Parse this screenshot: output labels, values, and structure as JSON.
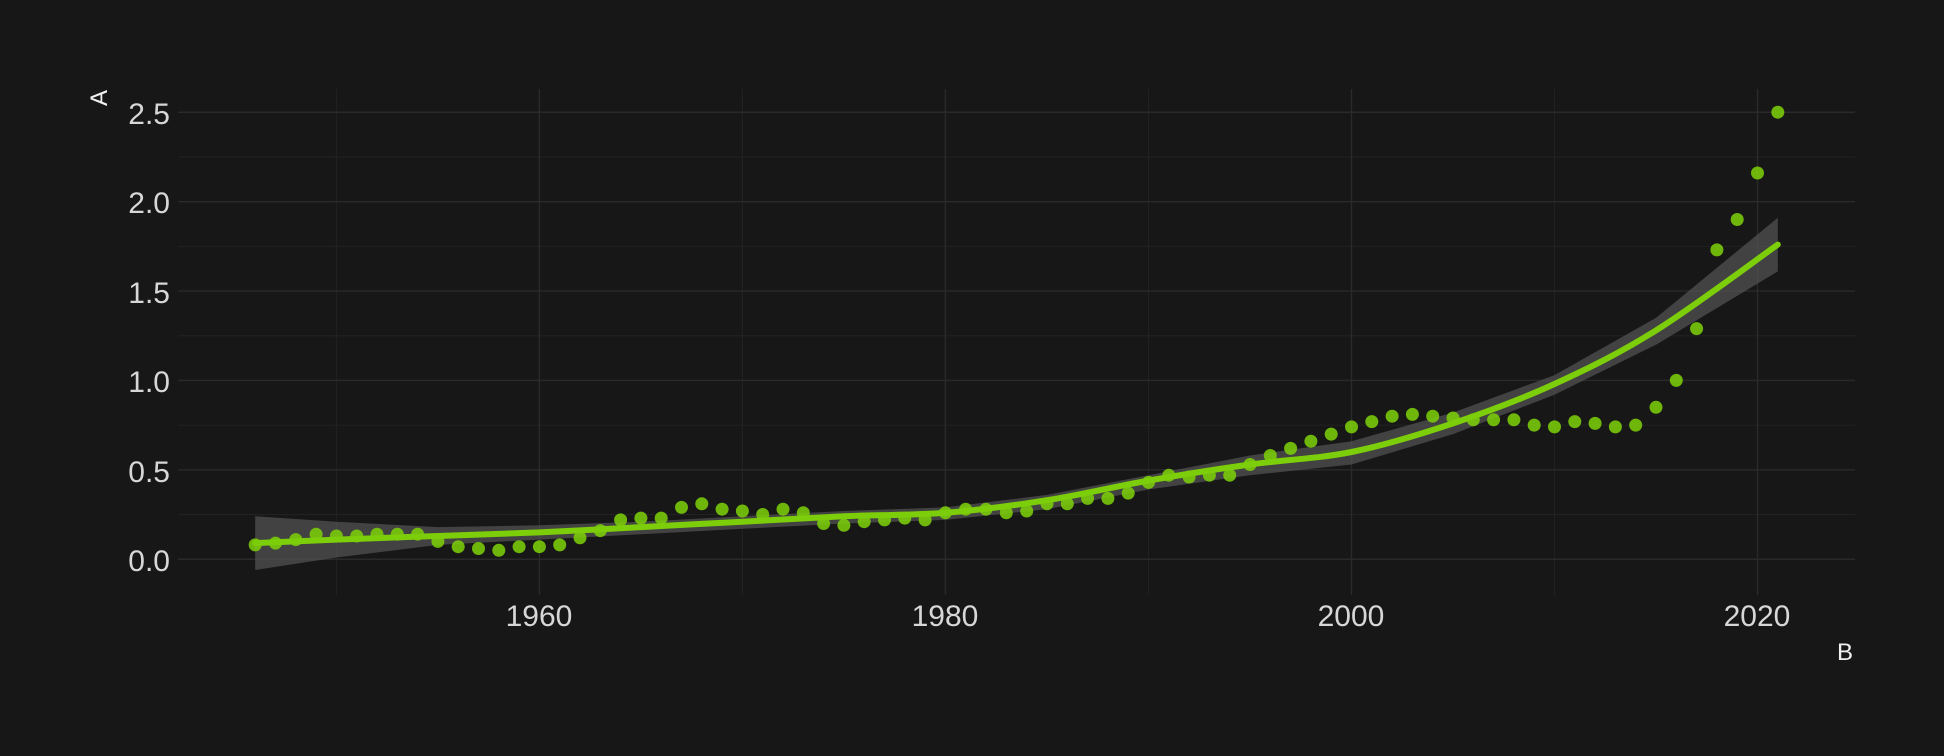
{
  "chart_data": {
    "type": "scatter",
    "title": "",
    "xlabel": "B",
    "ylabel": "A",
    "xlim": [
      1942.2,
      2024.8
    ],
    "ylim": [
      -0.2,
      2.63
    ],
    "x_ticks": [
      "1960",
      "1980",
      "2000",
      "2020"
    ],
    "y_ticks": [
      "0.0",
      "0.5",
      "1.0",
      "1.5",
      "2.0",
      "2.5"
    ],
    "grid": true,
    "legend": "none",
    "colors": {
      "background": "#171717",
      "points": "#7ccd0a",
      "trend": "#7ccd0a",
      "band": "#555555",
      "text": "#d7d7d7"
    },
    "points": {
      "x": [
        1946,
        1947,
        1948,
        1949,
        1950,
        1951,
        1952,
        1953,
        1954,
        1955,
        1956,
        1957,
        1958,
        1959,
        1960,
        1961,
        1962,
        1963,
        1964,
        1965,
        1966,
        1967,
        1968,
        1969,
        1970,
        1971,
        1972,
        1973,
        1974,
        1975,
        1976,
        1977,
        1978,
        1979,
        1980,
        1981,
        1982,
        1983,
        1984,
        1985,
        1986,
        1987,
        1988,
        1989,
        1990,
        1991,
        1992,
        1993,
        1994,
        1995,
        1996,
        1997,
        1998,
        1999,
        2000,
        2001,
        2002,
        2003,
        2004,
        2005,
        2006,
        2007,
        2008,
        2009,
        2010,
        2011,
        2012,
        2013,
        2014,
        2015,
        2016,
        2017,
        2018,
        2019,
        2020,
        2021
      ],
      "y": [
        0.08,
        0.09,
        0.11,
        0.14,
        0.13,
        0.13,
        0.14,
        0.14,
        0.14,
        0.1,
        0.07,
        0.06,
        0.05,
        0.07,
        0.07,
        0.08,
        0.12,
        0.16,
        0.22,
        0.23,
        0.23,
        0.29,
        0.31,
        0.28,
        0.27,
        0.25,
        0.28,
        0.26,
        0.2,
        0.19,
        0.21,
        0.22,
        0.23,
        0.22,
        0.26,
        0.28,
        0.28,
        0.26,
        0.27,
        0.31,
        0.31,
        0.34,
        0.34,
        0.37,
        0.43,
        0.47,
        0.46,
        0.47,
        0.47,
        0.53,
        0.58,
        0.62,
        0.66,
        0.7,
        0.74,
        0.77,
        0.8,
        0.81,
        0.8,
        0.79,
        0.78,
        0.78,
        0.78,
        0.75,
        0.74,
        0.77,
        0.76,
        0.74,
        0.75,
        0.85,
        1.0,
        1.29,
        1.73,
        1.9,
        2.16,
        2.5
      ]
    },
    "trend": {
      "x": [
        1946,
        1950,
        1955,
        1960,
        1965,
        1970,
        1975,
        1980,
        1985,
        1990,
        1995,
        2000,
        2005,
        2010,
        2015,
        2021
      ],
      "y": [
        0.09,
        0.11,
        0.13,
        0.15,
        0.18,
        0.21,
        0.24,
        0.26,
        0.33,
        0.44,
        0.53,
        0.6,
        0.76,
        0.98,
        1.28,
        1.76
      ],
      "upper": [
        0.24,
        0.21,
        0.18,
        0.19,
        0.21,
        0.24,
        0.27,
        0.29,
        0.36,
        0.47,
        0.58,
        0.66,
        0.82,
        1.03,
        1.35,
        1.91
      ],
      "lower": [
        -0.06,
        0.01,
        0.08,
        0.11,
        0.14,
        0.17,
        0.2,
        0.22,
        0.28,
        0.39,
        0.47,
        0.53,
        0.7,
        0.92,
        1.2,
        1.61
      ]
    }
  }
}
